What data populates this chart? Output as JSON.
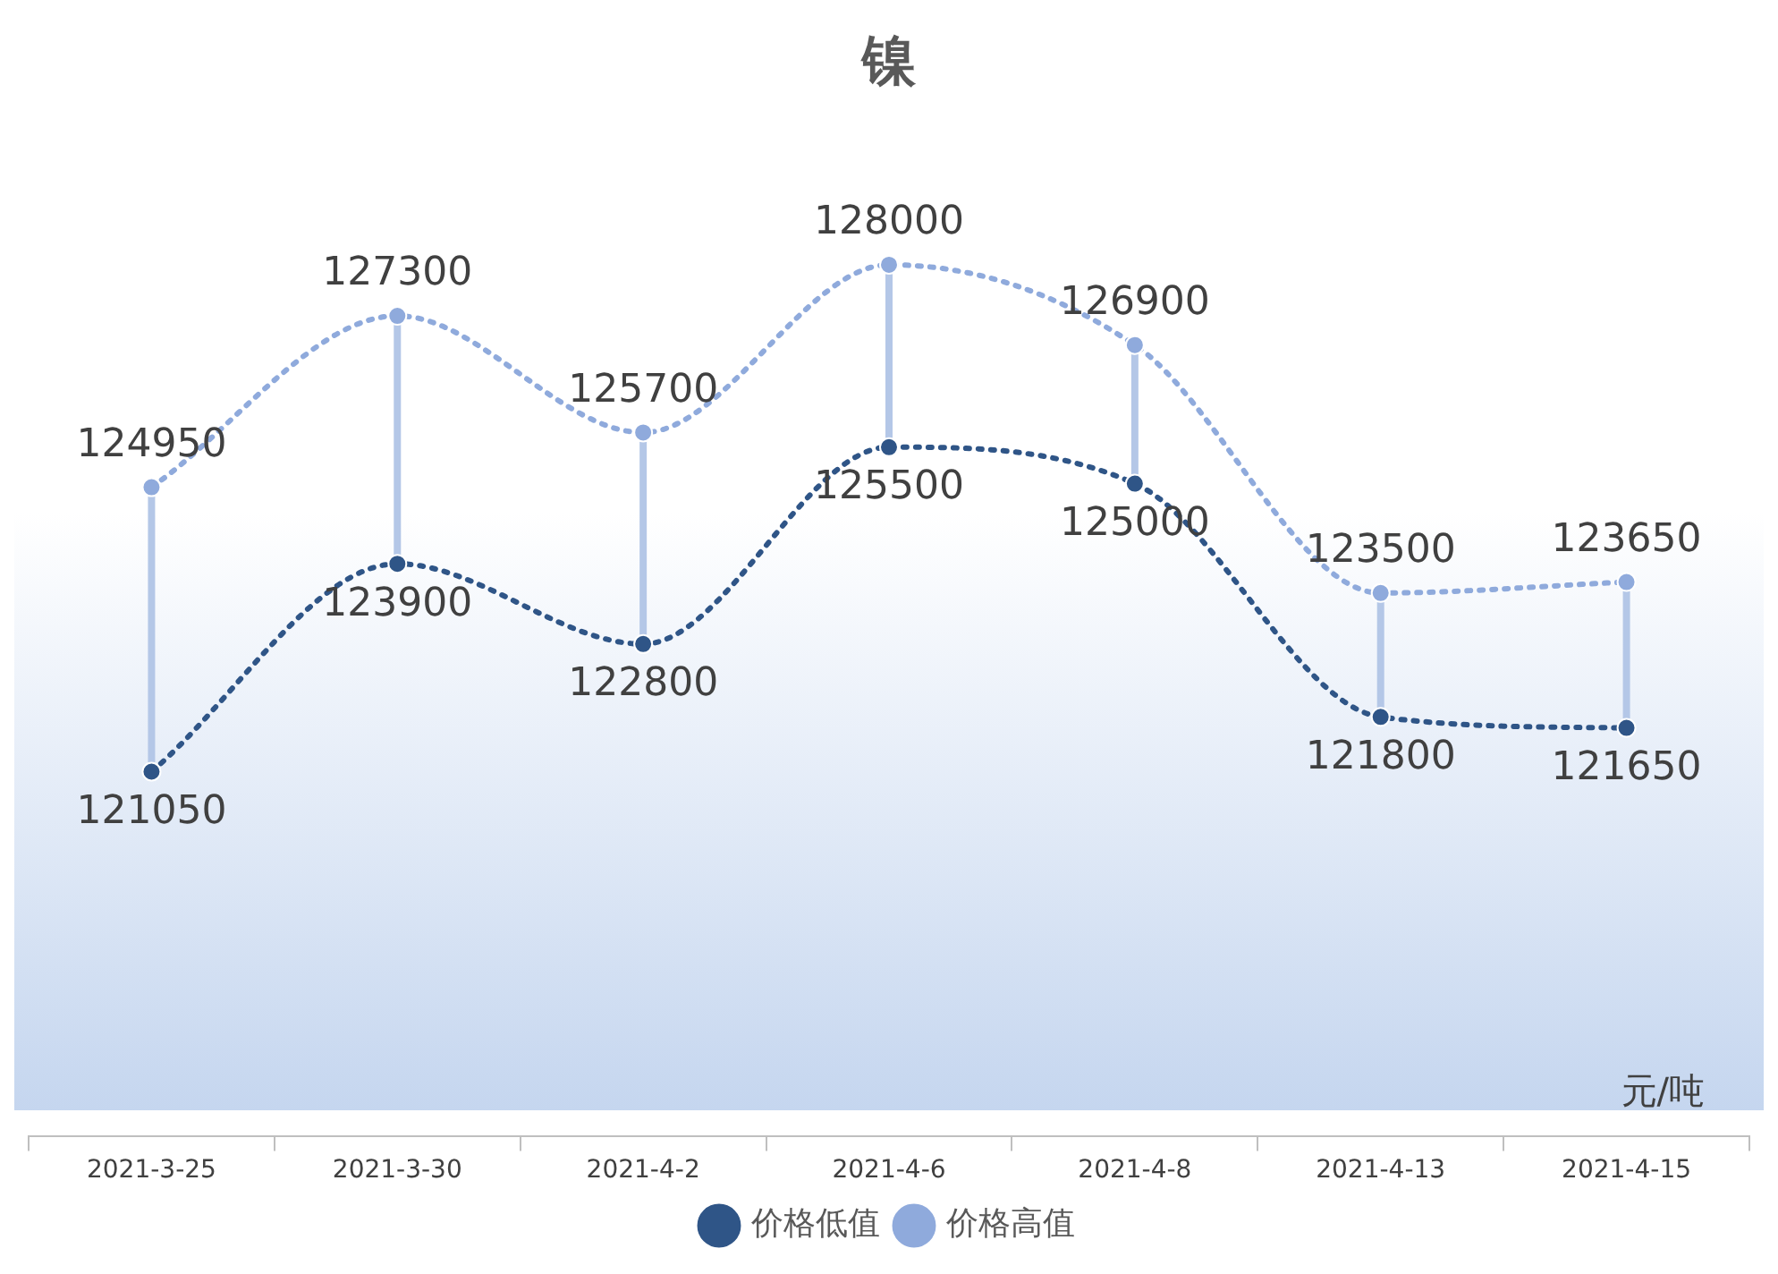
{
  "chart_data": {
    "type": "line",
    "title": "镍",
    "categories": [
      "2021-3-25",
      "2021-3-30",
      "2021-4-2",
      "2021-4-6",
      "2021-4-8",
      "2021-4-13",
      "2021-4-15"
    ],
    "series": [
      {
        "name": "价格低值",
        "color": "#2f5587",
        "values": [
          121050,
          123900,
          122800,
          125500,
          125000,
          121800,
          121650
        ]
      },
      {
        "name": "价格高值",
        "color": "#8faadc",
        "values": [
          124950,
          127300,
          125700,
          128000,
          126900,
          123500,
          123650
        ]
      }
    ],
    "data_labels": true,
    "marker": "circle",
    "line_style": "dotted",
    "grid": false,
    "legend": "bottom",
    "annotations": [
      "元/吨"
    ]
  }
}
